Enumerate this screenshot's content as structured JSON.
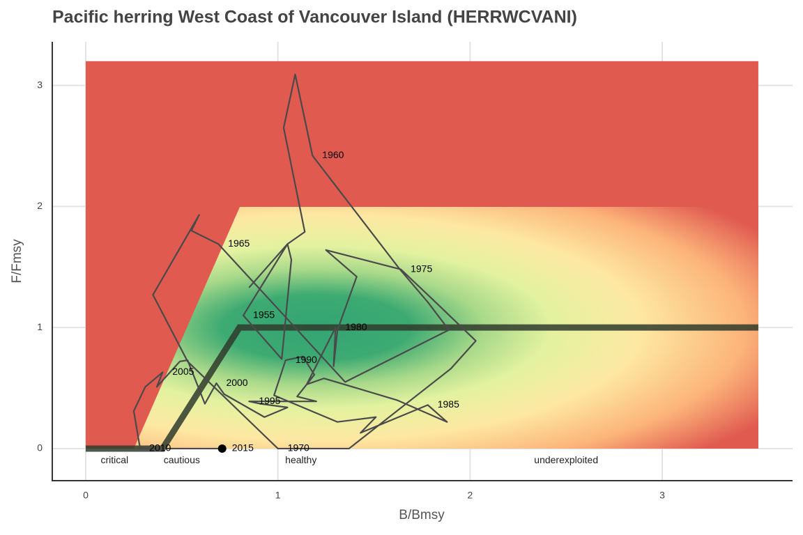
{
  "chart_data": {
    "type": "line",
    "title": "Pacific herring West Coast of Vancouver Island (HERRWCVANI)",
    "x_label": "B/Bmsy",
    "y_label": "F/Fmsy",
    "xlim": [
      -0.174,
      3.678
    ],
    "ylim": [
      -0.265,
      3.36
    ],
    "xticks": [
      0,
      1,
      2,
      3
    ],
    "yticks": [
      0,
      1,
      2,
      3
    ],
    "grid": true,
    "background": {
      "xlim": [
        0,
        3.5
      ],
      "ylim": [
        0,
        3.2
      ]
    },
    "reference": {
      "color": "#2f3b2c",
      "x": [
        0,
        0.4,
        0.8,
        3.5
      ],
      "values": [
        0,
        0,
        1,
        1
      ]
    },
    "series": [
      {
        "color": "#4a4a4a",
        "x": [
          0.85,
          1.05,
          1.07,
          1.02,
          0.82,
          1.05,
          1.14,
          1.03,
          1.09,
          1.18,
          1.63,
          1.78,
          1.89,
          1.35,
          0.69,
          0.55,
          0.59,
          0.35,
          0.53,
          1.0,
          1.37,
          1.9,
          2.03,
          1.8,
          1.64,
          1.25,
          1.41,
          1.31,
          1.29,
          1.3,
          1.15,
          1.24,
          1.62,
          1.88,
          1.78,
          1.43,
          1.51,
          1.31,
          0.98,
          1.04,
          1.13,
          1.19,
          1.1,
          1.2,
          0.85,
          0.91,
          1.05,
          0.93,
          0.72,
          0.68,
          0.62,
          0.53,
          0.49,
          0.37,
          0.4,
          0.31,
          0.25,
          0.28,
          0.29,
          0.28,
          0.4,
          0.5,
          0.6,
          0.65,
          0.71
        ],
        "values": [
          1.33,
          1.69,
          1.56,
          0.74,
          1.1,
          1.69,
          1.79,
          2.65,
          3.09,
          2.42,
          1.49,
          1.21,
          0.98,
          0.55,
          1.69,
          1.8,
          1.93,
          1.27,
          0.72,
          0,
          0,
          0.66,
          0.89,
          1.24,
          1.48,
          1.64,
          1.42,
          0.98,
          0.68,
          1.0,
          0.53,
          0.58,
          0.4,
          0.22,
          0.36,
          0.13,
          0.26,
          0.22,
          0.44,
          0.73,
          0.76,
          0.61,
          0.43,
          0.39,
          0.39,
          0.37,
          0.34,
          0.26,
          0.45,
          0.54,
          0.37,
          0.73,
          0.72,
          0.51,
          0.63,
          0.51,
          0.31,
          0.03,
          0,
          0,
          0,
          0,
          0,
          0,
          0
        ],
        "labels": [
          null,
          null,
          null,
          null,
          "1955",
          null,
          null,
          null,
          null,
          "1960",
          null,
          null,
          null,
          null,
          "1965",
          null,
          null,
          null,
          null,
          "1970",
          null,
          null,
          null,
          null,
          "1975",
          null,
          null,
          null,
          null,
          "1980",
          null,
          null,
          null,
          null,
          "1985",
          null,
          null,
          null,
          null,
          "1990",
          null,
          null,
          null,
          null,
          "1995",
          null,
          null,
          null,
          null,
          "2000",
          null,
          null,
          null,
          null,
          "2005",
          null,
          null,
          null,
          null,
          "2010",
          null,
          null,
          null,
          null,
          "2015"
        ]
      }
    ],
    "annotations": [
      {
        "text": "critical",
        "x": 0.15,
        "y": -0.1
      },
      {
        "text": "cautious",
        "x": 0.5,
        "y": -0.1
      },
      {
        "text": "healthy",
        "x": 1.12,
        "y": -0.1
      },
      {
        "text": "underexploited",
        "x": 2.5,
        "y": -0.1
      }
    ]
  }
}
